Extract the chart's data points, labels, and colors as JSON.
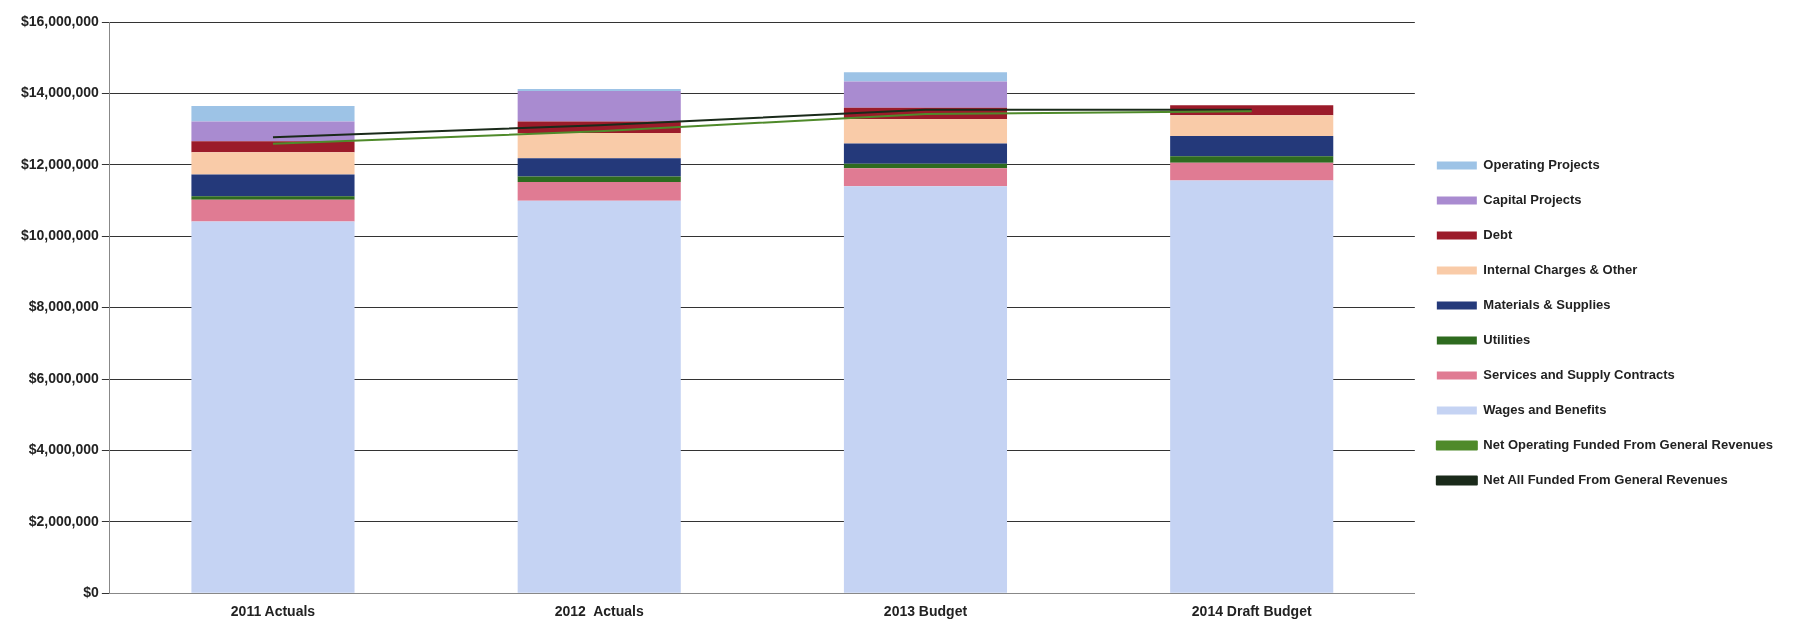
{
  "chart_data": {
    "type": "bar",
    "stacked": true,
    "categories": [
      "2011 Actuals",
      "2012  Actuals",
      "2013 Budget",
      "2014 Draft Budget"
    ],
    "ylim": [
      0,
      16000000
    ],
    "yticks": [
      {
        "value": 0,
        "label": "$0"
      },
      {
        "value": 2000000,
        "label": "$2,000,000"
      },
      {
        "value": 4000000,
        "label": "$4,000,000"
      },
      {
        "value": 6000000,
        "label": "$6,000,000"
      },
      {
        "value": 8000000,
        "label": "$8,000,000"
      },
      {
        "value": 10000000,
        "label": "$10,000,000"
      },
      {
        "value": 12000000,
        "label": "$12,000,000"
      },
      {
        "value": 14000000,
        "label": "$14,000,000"
      },
      {
        "value": 16000000,
        "label": "$16,000,000"
      }
    ],
    "grid": "y",
    "legend": "right",
    "series": [
      {
        "name": "Wages and Benefits",
        "color": "#c5d3f3",
        "values": [
          10410000,
          10990000,
          11400000,
          11560000
        ]
      },
      {
        "name": "Services and Supply Contracts",
        "color": "#e07b93",
        "values": [
          610000,
          530000,
          500000,
          500000
        ]
      },
      {
        "name": "Utilities",
        "color": "#2e6b1f",
        "values": [
          100000,
          150000,
          130000,
          180000
        ]
      },
      {
        "name": "Materials & Supplies",
        "color": "#24397a",
        "values": [
          610000,
          510000,
          570000,
          570000
        ]
      },
      {
        "name": "Internal Charges & Other",
        "color": "#f9cba8",
        "values": [
          620000,
          710000,
          680000,
          580000
        ]
      },
      {
        "name": "Debt",
        "color": "#9b1b2a",
        "values": [
          310000,
          320000,
          320000,
          280000
        ]
      },
      {
        "name": "Capital Projects",
        "color": "#a98bd0",
        "values": [
          550000,
          860000,
          730000,
          0
        ]
      },
      {
        "name": "Operating Projects",
        "color": "#9dc3e6",
        "values": [
          440000,
          50000,
          260000,
          0
        ]
      },
      {
        "name": "Net Operating Funded From General Revenues",
        "type": "line",
        "color": "#4f8a2a",
        "values": [
          12590000,
          12940000,
          13420000,
          13500000
        ]
      },
      {
        "name": "Net All Funded From General Revenues",
        "type": "line",
        "color": "#1a2a1a",
        "values": [
          12770000,
          13110000,
          13540000,
          13540000
        ]
      }
    ]
  }
}
